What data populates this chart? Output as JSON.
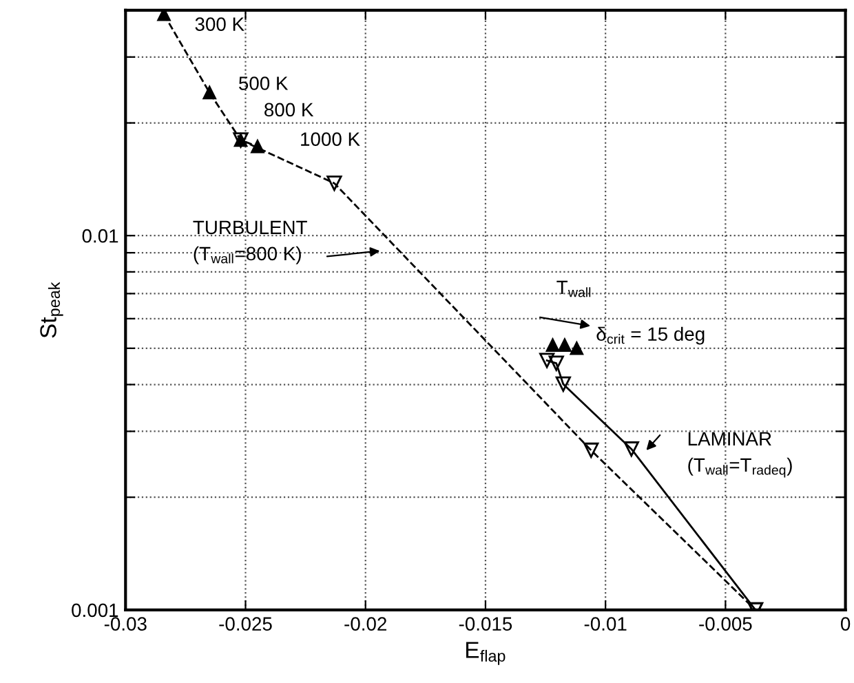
{
  "chart_data": {
    "type": "line",
    "xlabel": "E$_{flap}$",
    "ylabel": "St$_{peak}$",
    "xlim": [
      -0.03,
      0
    ],
    "xticks": [
      -0.03,
      -0.025,
      -0.02,
      -0.015,
      -0.01,
      -0.005,
      0
    ],
    "ylim": [
      0.001,
      0.04
    ],
    "log": "y",
    "yticks": [
      0.001,
      {
        "value": 0.002,
        "label": null
      },
      {
        "value": 0.003,
        "label": null
      },
      {
        "value": 0.004,
        "label": null
      },
      {
        "value": 0.005,
        "label": null
      },
      {
        "value": 0.006,
        "label": null
      },
      {
        "value": 0.007,
        "label": null
      },
      {
        "value": 0.008,
        "label": null
      },
      {
        "value": 0.009,
        "label": null
      },
      0.01,
      {
        "value": 0.02,
        "label": null
      },
      {
        "value": 0.03,
        "label": null
      }
    ],
    "grid": true,
    "legend": false,
    "series": [
      {
        "color": "#000000",
        "marker": "triangle",
        "line_style": "dashed",
        "x": [
          -0.0284,
          -0.0265,
          -0.0252,
          -0.0245
        ],
        "values": [
          0.039,
          0.0241,
          0.018,
          0.0173
        ]
      },
      {
        "color": "#000000",
        "marker": "triangle",
        "line_style": "dashed",
        "x": [
          -0.0252,
          -0.0213,
          -0.0106,
          -0.00375
        ],
        "values": [
          0.018,
          0.0138,
          0.00267,
          0.001
        ]
      },
      {
        "color": "#000000",
        "marker": "triangle",
        "line_style": "solid",
        "x": [
          -0.01244,
          -0.01205,
          -0.01176,
          -0.00892,
          -0.00375
        ],
        "values": [
          0.00464,
          0.00456,
          0.00401,
          0.00269,
          0.001
        ]
      },
      {
        "type": "scatter",
        "color": "#000000",
        "marker": "triangle",
        "x": [
          -0.0122,
          -0.0117,
          -0.0112
        ],
        "values": [
          0.0051,
          0.0051,
          0.005
        ]
      }
    ],
    "annotations": [
      {
        "text": "300 K",
        "x": -0.0284,
        "y": 0.039
      },
      {
        "text": "500 K",
        "x": -0.0265,
        "y": 0.0241
      },
      {
        "text": "800 K",
        "x": -0.0252,
        "y": 0.018
      },
      {
        "text": "1000 K",
        "x": -0.0245,
        "y": 0.0173
      },
      "TURBULENT\n(T$_{wall}$=800 K)",
      "LAMINAR\n(T$_{wall}$=T$_{radeq}$)",
      "T$_{wall}$",
      "δ$_{crit}$ = 15 deg"
    ]
  }
}
